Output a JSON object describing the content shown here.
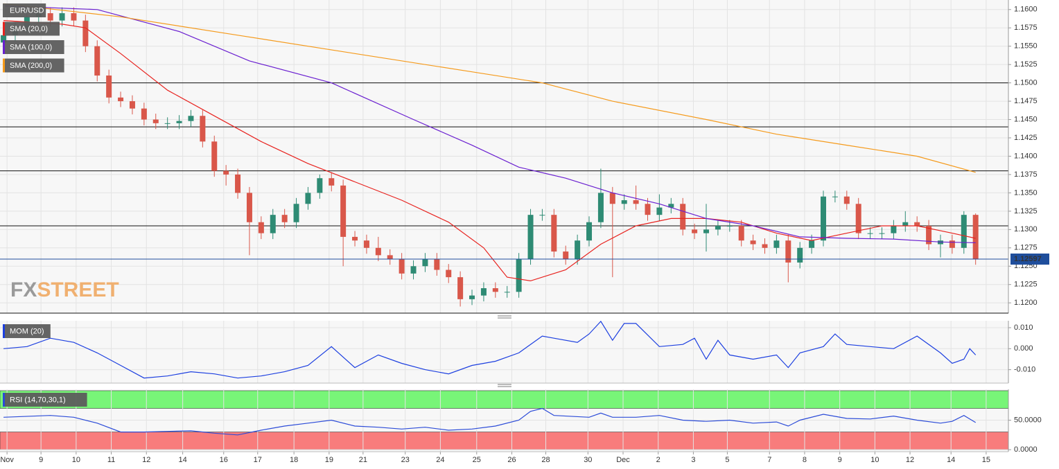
{
  "chart_data": [
    {
      "type": "candlestick",
      "name": "EUR/USD",
      "up_color": "#2e8b74",
      "down_color": "#d9574a",
      "xlim": [
        -0.3,
        85.8
      ],
      "ylim": [
        1.1186,
        1.1613
      ],
      "yticks": [
        {
          "value": 1.16,
          "label": "1.1600"
        },
        {
          "value": 1.1575,
          "label": "1.1575"
        },
        {
          "value": 1.155,
          "label": "1.1550"
        },
        {
          "value": 1.1525,
          "label": "1.1525"
        },
        {
          "value": 1.15,
          "label": "1.1500"
        },
        {
          "value": 1.1475,
          "label": "1.1475"
        },
        {
          "value": 1.145,
          "label": "1.1450"
        },
        {
          "value": 1.1425,
          "label": "1.1425"
        },
        {
          "value": 1.14,
          "label": "1.1400"
        },
        {
          "value": 1.1375,
          "label": "1.1375"
        },
        {
          "value": 1.135,
          "label": "1.1350"
        },
        {
          "value": 1.1325,
          "label": "1.1325"
        },
        {
          "value": 1.13,
          "label": "1.1300"
        },
        {
          "value": 1.1275,
          "label": "1.1275"
        },
        {
          "value": 1.125,
          "label": "1.1250"
        },
        {
          "value": 1.1225,
          "label": "1.1225"
        },
        {
          "value": 1.12,
          "label": "1.1200"
        }
      ],
      "hlines": [
        1.15,
        1.144,
        1.138,
        1.1305
      ],
      "last_price": {
        "value": 1.12597,
        "label": "1.12597",
        "color": "#1f4e9c"
      },
      "watermark": [
        "FX",
        "STREET"
      ],
      "candles": {
        "open": [
          1.1555,
          1.1565,
          1.1575,
          1.159,
          1.1595,
          1.1585,
          1.1595,
          1.1585,
          1.155,
          1.151,
          1.148,
          1.1475,
          1.1465,
          1.145,
          1.1445,
          1.1445,
          1.1448,
          1.1455,
          1.142,
          1.138,
          1.1375,
          1.135,
          1.131,
          1.1295,
          1.132,
          1.131,
          1.1335,
          1.135,
          1.137,
          1.136,
          1.129,
          1.1285,
          1.1275,
          1.1265,
          1.126,
          1.124,
          1.125,
          1.126,
          1.1245,
          1.1235,
          1.1205,
          1.121,
          1.122,
          1.1215,
          1.1215,
          1.126,
          1.132,
          1.132,
          1.127,
          1.126,
          1.1285,
          1.131,
          1.135,
          1.1335,
          1.134,
          1.1335,
          1.132,
          1.133,
          1.1335,
          1.13,
          1.1295,
          1.13,
          1.1305,
          1.1305,
          1.1285,
          1.128,
          1.1275,
          1.1285,
          1.1255,
          1.1275,
          1.1285,
          1.1345,
          1.1345,
          1.1335,
          1.1295,
          1.1295,
          1.1295,
          1.1305,
          1.131,
          1.1305,
          1.128,
          1.1285,
          1.1275,
          1.132
        ],
        "high": [
          1.1573,
          1.1583,
          1.1598,
          1.1603,
          1.1603,
          1.1603,
          1.1603,
          1.1593,
          1.1558,
          1.1518,
          1.1488,
          1.1483,
          1.1473,
          1.1458,
          1.1453,
          1.1456,
          1.1463,
          1.1463,
          1.1428,
          1.1388,
          1.1383,
          1.1358,
          1.1318,
          1.1328,
          1.1328,
          1.1343,
          1.1358,
          1.1375,
          1.1378,
          1.1368,
          1.1298,
          1.1293,
          1.129,
          1.1273,
          1.1268,
          1.1258,
          1.1268,
          1.1268,
          1.1253,
          1.1243,
          1.1218,
          1.1228,
          1.1228,
          1.1223,
          1.1268,
          1.1328,
          1.1328,
          1.1328,
          1.1278,
          1.1293,
          1.1318,
          1.1383,
          1.1358,
          1.1348,
          1.136,
          1.1343,
          1.1348,
          1.1343,
          1.1343,
          1.1308,
          1.1335,
          1.1313,
          1.1313,
          1.1313,
          1.1293,
          1.1288,
          1.1293,
          1.1293,
          1.1283,
          1.1293,
          1.1353,
          1.1353,
          1.1353,
          1.1343,
          1.1303,
          1.1303,
          1.1313,
          1.1325,
          1.1318,
          1.1313,
          1.1293,
          1.1293,
          1.1325,
          1.1322
        ],
        "low": [
          1.1547,
          1.1557,
          1.1567,
          1.1582,
          1.1577,
          1.1577,
          1.1577,
          1.1542,
          1.1502,
          1.1472,
          1.1467,
          1.1457,
          1.1442,
          1.1437,
          1.1437,
          1.1437,
          1.144,
          1.1412,
          1.1372,
          1.136,
          1.1342,
          1.1265,
          1.1287,
          1.1287,
          1.1302,
          1.1302,
          1.1327,
          1.1342,
          1.1352,
          1.125,
          1.1277,
          1.1267,
          1.1257,
          1.1252,
          1.1232,
          1.1232,
          1.1242,
          1.1237,
          1.1227,
          1.1195,
          1.1197,
          1.1202,
          1.1207,
          1.1207,
          1.1207,
          1.1252,
          1.1312,
          1.1262,
          1.1252,
          1.1252,
          1.1277,
          1.1302,
          1.1235,
          1.1327,
          1.1327,
          1.1312,
          1.1312,
          1.1322,
          1.1292,
          1.1287,
          1.127,
          1.1292,
          1.1297,
          1.1277,
          1.1272,
          1.1267,
          1.1267,
          1.1228,
          1.1247,
          1.1267,
          1.1277,
          1.1337,
          1.1327,
          1.1287,
          1.1287,
          1.1287,
          1.1287,
          1.1297,
          1.1297,
          1.1272,
          1.1262,
          1.1267,
          1.1267,
          1.1252
        ],
        "close": [
          1.1565,
          1.1575,
          1.159,
          1.1595,
          1.1585,
          1.1595,
          1.1585,
          1.155,
          1.151,
          1.148,
          1.1475,
          1.1465,
          1.145,
          1.1445,
          1.1445,
          1.1448,
          1.1455,
          1.142,
          1.138,
          1.1375,
          1.135,
          1.131,
          1.1295,
          1.132,
          1.131,
          1.1335,
          1.135,
          1.137,
          1.136,
          1.129,
          1.1285,
          1.1275,
          1.1265,
          1.126,
          1.124,
          1.125,
          1.126,
          1.1245,
          1.1235,
          1.1205,
          1.121,
          1.122,
          1.1215,
          1.1215,
          1.126,
          1.132,
          1.132,
          1.127,
          1.126,
          1.1285,
          1.131,
          1.135,
          1.1335,
          1.134,
          1.1335,
          1.132,
          1.133,
          1.1335,
          1.13,
          1.1295,
          1.13,
          1.1305,
          1.1305,
          1.1285,
          1.128,
          1.1275,
          1.1285,
          1.1255,
          1.1275,
          1.1285,
          1.1345,
          1.1345,
          1.1335,
          1.1295,
          1.1295,
          1.1295,
          1.1305,
          1.131,
          1.1305,
          1.128,
          1.1285,
          1.1275,
          1.132,
          1.126
        ]
      },
      "series": [
        {
          "name": "SMA (20,0)",
          "color": "#e8231f",
          "x": [
            0,
            5,
            7,
            10,
            14,
            18,
            22,
            26,
            30,
            34,
            38,
            41,
            43,
            45,
            48,
            51,
            54,
            57,
            60,
            63,
            66,
            69,
            72,
            75,
            78,
            81,
            83
          ],
          "values": [
            1.1585,
            1.158,
            1.1575,
            1.154,
            1.149,
            1.1455,
            1.142,
            1.139,
            1.1365,
            1.134,
            1.131,
            1.1275,
            1.1235,
            1.123,
            1.1245,
            1.128,
            1.1305,
            1.1315,
            1.1315,
            1.131,
            1.1295,
            1.1285,
            1.1295,
            1.1305,
            1.1305,
            1.1295,
            1.1288
          ]
        },
        {
          "name": "SMA (100,0)",
          "color": "#6a1fd0",
          "x": [
            0,
            8,
            15,
            21,
            28,
            35,
            40,
            44,
            48,
            52,
            56,
            60,
            64,
            68,
            72,
            76,
            80,
            83
          ],
          "values": [
            1.1605,
            1.16,
            1.157,
            1.153,
            1.15,
            1.145,
            1.1415,
            1.1385,
            1.137,
            1.135,
            1.1335,
            1.1315,
            1.1305,
            1.129,
            1.1288,
            1.1287,
            1.1283,
            1.1282
          ]
        },
        {
          "name": "SMA (200,0)",
          "color": "#f59a1b",
          "x": [
            0,
            10,
            20,
            30,
            40,
            46,
            52,
            60,
            66,
            72,
            78,
            83
          ],
          "values": [
            1.1608,
            1.159,
            1.1565,
            1.154,
            1.1515,
            1.15,
            1.1475,
            1.145,
            1.143,
            1.1415,
            1.14,
            1.1378
          ]
        }
      ]
    },
    {
      "type": "line",
      "xlim": [
        -0.3,
        85.8
      ],
      "ylim": [
        -0.0164,
        0.0133
      ],
      "yticks": [
        {
          "value": 0.01,
          "label": "0.010"
        },
        {
          "value": 0,
          "label": "0.000"
        },
        {
          "value": -0.01,
          "label": "-0.010"
        }
      ],
      "series": [
        {
          "name": "MOM (20)",
          "color": "#1c3fe0",
          "x": [
            0,
            2,
            4,
            6,
            8,
            10,
            12,
            14,
            16,
            18,
            20,
            22,
            24,
            26,
            28,
            30,
            32,
            34,
            36,
            38,
            40,
            42,
            44,
            46,
            47,
            49,
            50,
            51,
            52,
            53,
            54,
            56,
            58,
            59,
            60,
            61,
            62,
            64,
            66,
            67,
            68,
            70,
            71,
            72,
            74,
            76,
            78,
            80,
            81,
            82,
            82.5,
            83
          ],
          "values": [
            0,
            0.001,
            0.005,
            0.003,
            -0.002,
            -0.008,
            -0.014,
            -0.013,
            -0.011,
            -0.012,
            -0.014,
            -0.013,
            -0.011,
            -0.008,
            0.001,
            -0.009,
            -0.003,
            -0.007,
            -0.01,
            -0.012,
            -0.008,
            -0.006,
            -0.002,
            0.006,
            0.005,
            0.003,
            0.007,
            0.013,
            0.004,
            0.012,
            0.012,
            0.001,
            0.002,
            0.005,
            -0.005,
            0.004,
            -0.003,
            -0.005,
            -0.003,
            -0.009,
            -0.002,
            0.001,
            0.007,
            0.002,
            0.001,
            0,
            0.006,
            -0.002,
            -0.007,
            -0.005,
            0,
            -0.003
          ]
        }
      ]
    },
    {
      "type": "line",
      "xlim": [
        -0.3,
        85.8
      ],
      "ylim": [
        -3.4,
        102.3
      ],
      "yticks": [
        {
          "value": 50,
          "label": "50.0000"
        },
        {
          "value": 0,
          "label": "0.0000"
        }
      ],
      "bands": [
        {
          "from": 70,
          "to": 100,
          "color": "#78f578"
        },
        {
          "from": 0,
          "to": 30,
          "color": "#f87c7c"
        }
      ],
      "xticks": [
        {
          "value": 0.3,
          "label": "Nov"
        },
        {
          "value": 3.2,
          "label": "9"
        },
        {
          "value": 6.2,
          "label": "10"
        },
        {
          "value": 9.2,
          "label": "11"
        },
        {
          "value": 12.2,
          "label": "12"
        },
        {
          "value": 15.3,
          "label": "14"
        },
        {
          "value": 18.8,
          "label": "16"
        },
        {
          "value": 21.7,
          "label": "17"
        },
        {
          "value": 24.8,
          "label": "18"
        },
        {
          "value": 27.8,
          "label": "19"
        },
        {
          "value": 30.7,
          "label": "21"
        },
        {
          "value": 34.3,
          "label": "23"
        },
        {
          "value": 37.3,
          "label": "24"
        },
        {
          "value": 40.4,
          "label": "25"
        },
        {
          "value": 43.4,
          "label": "26"
        },
        {
          "value": 46.3,
          "label": "28"
        },
        {
          "value": 49.9,
          "label": "30"
        },
        {
          "value": 52.9,
          "label": "Dec"
        },
        {
          "value": 55.9,
          "label": "2"
        },
        {
          "value": 58.9,
          "label": "3"
        },
        {
          "value": 61.8,
          "label": "5"
        },
        {
          "value": 65.4,
          "label": "7"
        },
        {
          "value": 68.4,
          "label": "8"
        },
        {
          "value": 71.4,
          "label": "9"
        },
        {
          "value": 74.4,
          "label": "10"
        },
        {
          "value": 77.4,
          "label": "12"
        },
        {
          "value": 80.9,
          "label": "14"
        },
        {
          "value": 83.9,
          "label": "15"
        }
      ],
      "series": [
        {
          "name": "RSI (14,70,30,1)",
          "color": "#2b4bd8",
          "x": [
            0,
            4,
            6,
            8,
            10,
            12,
            14,
            16,
            18,
            20,
            22,
            24,
            26,
            28,
            30,
            32,
            34,
            36,
            38,
            40,
            42,
            44,
            45,
            46,
            47,
            50,
            51,
            52,
            54,
            56,
            58,
            60,
            62,
            64,
            66,
            67,
            68,
            70,
            72,
            74,
            76,
            78,
            80,
            81,
            82,
            83
          ],
          "values": [
            55,
            58,
            55,
            45,
            30,
            30,
            31,
            32,
            28,
            25,
            33,
            40,
            45,
            50,
            40,
            38,
            35,
            38,
            33,
            35,
            40,
            50,
            65,
            70,
            58,
            55,
            62,
            55,
            55,
            58,
            50,
            48,
            50,
            45,
            47,
            40,
            50,
            60,
            53,
            52,
            57,
            50,
            45,
            48,
            58,
            46
          ]
        }
      ]
    }
  ]
}
